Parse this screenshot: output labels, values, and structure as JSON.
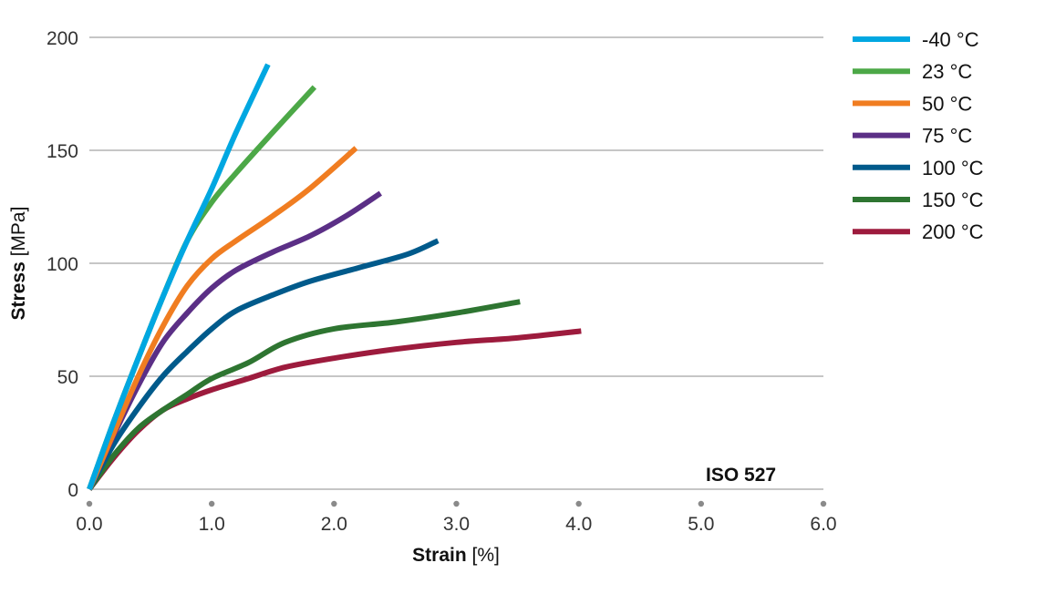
{
  "chart_data": {
    "type": "line",
    "xlabel": {
      "name": "Strain",
      "unit": "[%]"
    },
    "ylabel": {
      "name": "Stress",
      "unit": "[MPa]"
    },
    "xlim": [
      0,
      6
    ],
    "ylim": [
      0,
      200
    ],
    "x_ticks": [
      "0.0",
      "1.0",
      "2.0",
      "3.0",
      "4.0",
      "5.0",
      "6.0"
    ],
    "y_ticks": [
      "0",
      "50",
      "100",
      "150",
      "200"
    ],
    "grid": "horizontal",
    "legend_position": "right",
    "annotation": "ISO 527",
    "series": [
      {
        "name": "-40 °C",
        "color": "#00a7e1",
        "x": [
          0,
          0.2,
          0.4,
          0.6,
          0.8,
          1.0,
          1.2,
          1.46
        ],
        "y": [
          0,
          30,
          58,
          85,
          110,
          133,
          158,
          188
        ]
      },
      {
        "name": "23 °C",
        "color": "#4ca847",
        "x": [
          0,
          0.2,
          0.4,
          0.6,
          0.8,
          1.0,
          1.2,
          1.5,
          1.84
        ],
        "y": [
          0,
          30,
          58,
          85,
          110,
          127,
          140,
          158,
          178
        ]
      },
      {
        "name": "50 °C",
        "color": "#f07d21",
        "x": [
          0,
          0.2,
          0.4,
          0.6,
          0.8,
          1.0,
          1.2,
          1.5,
          1.8,
          2.18
        ],
        "y": [
          0,
          25,
          50,
          72,
          90,
          102,
          110,
          121,
          133,
          151
        ]
      },
      {
        "name": "75 °C",
        "color": "#5b2f86",
        "x": [
          0,
          0.2,
          0.4,
          0.6,
          0.8,
          1.0,
          1.2,
          1.5,
          1.8,
          2.1,
          2.38
        ],
        "y": [
          0,
          24,
          46,
          65,
          78,
          89,
          97,
          105,
          112,
          121,
          131
        ]
      },
      {
        "name": "100 °C",
        "color": "#005a8b",
        "x": [
          0,
          0.2,
          0.4,
          0.6,
          0.8,
          1.0,
          1.2,
          1.5,
          1.8,
          2.2,
          2.6,
          2.85
        ],
        "y": [
          0,
          20,
          36,
          50,
          61,
          71,
          79,
          86,
          92,
          98,
          104,
          110
        ]
      },
      {
        "name": "150 °C",
        "color": "#2e7531",
        "x": [
          0,
          0.2,
          0.4,
          0.6,
          0.8,
          1.0,
          1.3,
          1.6,
          2.0,
          2.5,
          3.0,
          3.52
        ],
        "y": [
          0,
          15,
          27,
          35,
          42,
          49,
          56,
          65,
          71,
          74,
          78,
          83
        ]
      },
      {
        "name": "200 °C",
        "color": "#9d1b3d",
        "x": [
          0,
          0.2,
          0.4,
          0.6,
          0.8,
          1.0,
          1.3,
          1.6,
          2.0,
          2.5,
          3.0,
          3.5,
          4.02
        ],
        "y": [
          0,
          14,
          26,
          35,
          40,
          44,
          49,
          54,
          58,
          62,
          65,
          67,
          70
        ]
      }
    ]
  }
}
